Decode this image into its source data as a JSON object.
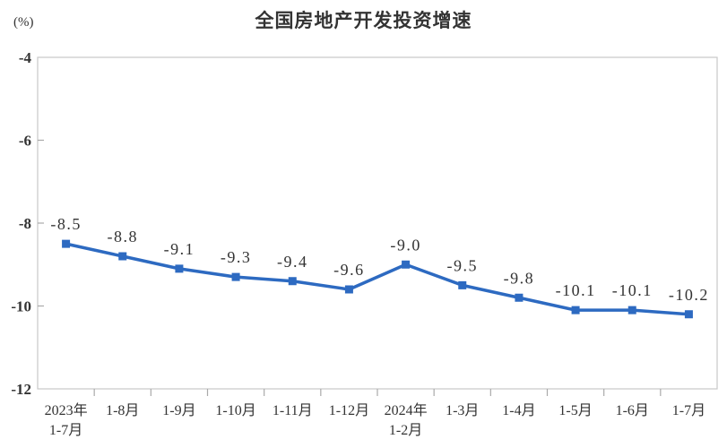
{
  "chart_data": {
    "type": "line",
    "title": "全国房地产开发投资增速",
    "unit_label": "(%)",
    "categories": [
      "2023年\n1-7月",
      "1-8月",
      "1-9月",
      "1-10月",
      "1-11月",
      "1-12月",
      "2024年\n1-2月",
      "1-3月",
      "1-4月",
      "1-5月",
      "1-6月",
      "1-7月"
    ],
    "series_name": "全国房地产开发投资增速",
    "values": [
      -8.5,
      -8.8,
      -9.1,
      -9.3,
      -9.4,
      -9.6,
      -9.0,
      -9.5,
      -9.8,
      -10.1,
      -10.1,
      -10.2
    ],
    "data_labels": [
      "-8.5",
      "-8.8",
      "-9.1",
      "-9.3",
      "-9.4",
      "-9.6",
      "-9.0",
      "-9.5",
      "-9.8",
      "-10.1",
      "-10.1",
      "-10.2"
    ],
    "xlabel": "",
    "ylabel": "(%)",
    "ylim": [
      -12,
      -4
    ],
    "yticks": [
      -4,
      -6,
      -8,
      -10,
      -12
    ],
    "grid": false,
    "legend": "none",
    "marker": "square",
    "series_color": "#2d6ac1",
    "axis_color": "#c8c8c8",
    "tick_color": "#aaaaaa",
    "text_color": "#333333"
  }
}
